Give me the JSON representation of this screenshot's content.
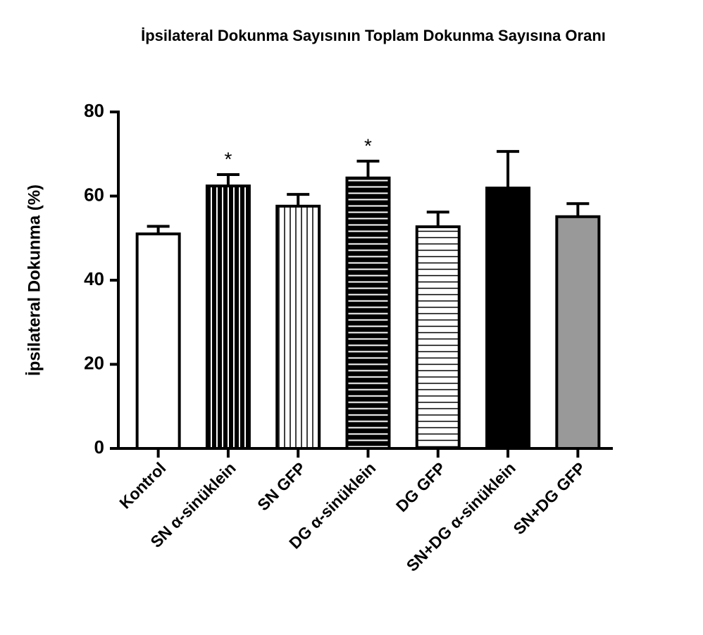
{
  "chart_data": {
    "type": "bar",
    "title": "İpsilateral Dokunma Sayısının Toplam Dokunma Sayısına Oranı",
    "y_label": "İpsilateral Dokunma (%)",
    "categories": [
      "Kontrol",
      "SN α-sinüklein",
      "SN GFP",
      "DG α-sinüklein",
      "DG GFP",
      "SN+DG α-sinüklein",
      "SN+DG GFP"
    ],
    "values": [
      51,
      62.4,
      57.6,
      64.3,
      52.7,
      61.9,
      55.1
    ],
    "errors": [
      1.8,
      2.7,
      2.8,
      4.0,
      3.5,
      8.7,
      3.1
    ],
    "significance": [
      null,
      "*",
      null,
      "*",
      null,
      null,
      null
    ],
    "fills": [
      "#ffffff",
      "#000000",
      "#ffffff",
      "#000000",
      "#ffffff",
      "#000000",
      "#999999"
    ],
    "hatch": [
      null,
      "vertical-white",
      "vertical-black",
      "horizontal-white",
      "horizontal-black",
      null,
      null
    ],
    "ylim": [
      0,
      80
    ],
    "yticks": [
      0,
      20,
      40,
      60,
      80
    ],
    "grid": false
  }
}
